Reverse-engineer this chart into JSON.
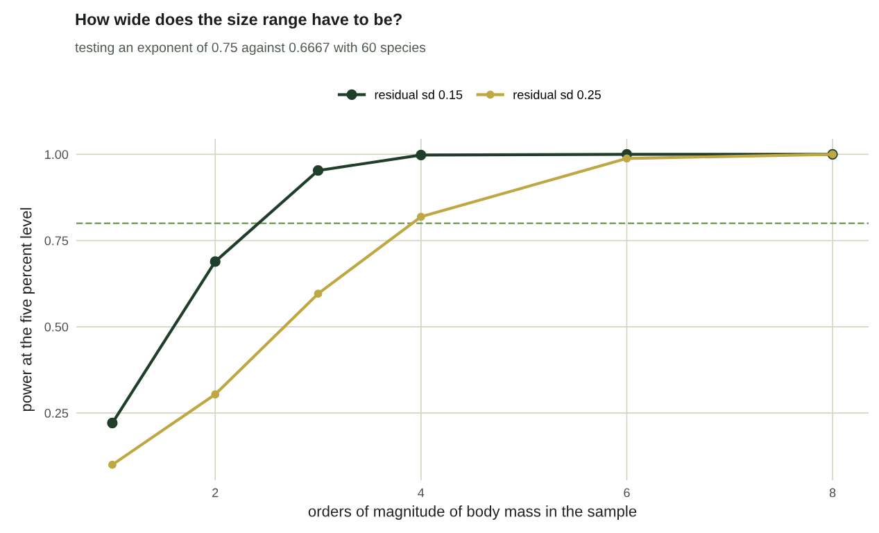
{
  "chart_data": {
    "type": "line",
    "title": "How wide does the size range have to be?",
    "subtitle": "testing an exponent of 0.75 against 0.6667 with 60 species",
    "xlabel": "orders of magnitude of body mass in the sample",
    "ylabel": "power at the five percent level",
    "x": [
      1,
      2,
      3,
      4,
      6,
      8
    ],
    "series": [
      {
        "name": "residual sd 0.15",
        "color": "#1f3f2a",
        "values": [
          0.221,
          0.689,
          0.953,
          0.998,
          1.0,
          1.0
        ]
      },
      {
        "name": "residual sd 0.25",
        "color": "#bfa843",
        "values": [
          0.1,
          0.304,
          0.596,
          0.819,
          0.988,
          1.0
        ]
      }
    ],
    "xlim": [
      0.65,
      8.35
    ],
    "ylim": [
      0.055,
      1.045
    ],
    "xticks": [
      2,
      4,
      6,
      8
    ],
    "yticks": [
      {
        "value": 0.25,
        "label": "0.25"
      },
      {
        "value": 0.5,
        "label": "0.50"
      },
      {
        "value": 0.75,
        "label": "0.75"
      },
      {
        "value": 1.0,
        "label": "1.00"
      }
    ],
    "ref_lines": [
      {
        "axis": "y",
        "value": 0.8,
        "color": "#7d9e62",
        "line_style": "dashed"
      }
    ],
    "grid": true,
    "legend": "top",
    "marker": "circle",
    "line_style": "solid"
  }
}
